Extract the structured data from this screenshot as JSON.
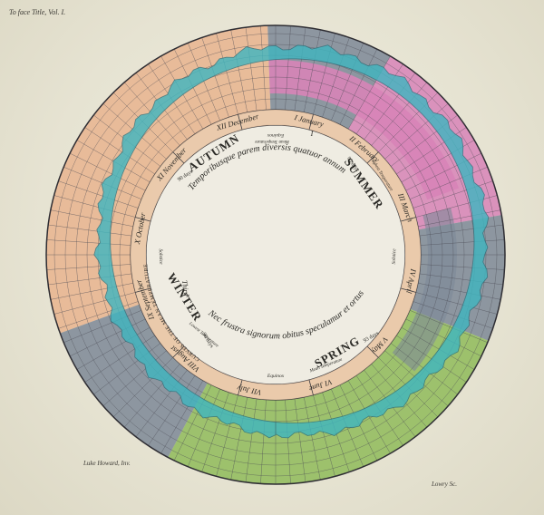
{
  "plate": {
    "volume_note": "To face Title, Vol. I.",
    "engraver_left": "Luke Howard, Inv.",
    "engraver_right": "Lowry Sc."
  },
  "seasons": [
    {
      "name": "AUTUMN",
      "days": "90 days",
      "color": "#e8b48e"
    },
    {
      "name": "WINTER",
      "days": "90 days",
      "color": "#7d8897"
    },
    {
      "name": "SPRING",
      "days": "93 days",
      "color": "#8fbb5a"
    },
    {
      "name": "SUMMER",
      "days": "93 days",
      "color": "#d784b7"
    }
  ],
  "months": [
    {
      "numeral": "I",
      "name": "January"
    },
    {
      "numeral": "II",
      "name": "February"
    },
    {
      "numeral": "III",
      "name": "March"
    },
    {
      "numeral": "IV",
      "name": "April"
    },
    {
      "numeral": "V",
      "name": "May"
    },
    {
      "numeral": "VI",
      "name": "June"
    },
    {
      "numeral": "VII",
      "name": "July"
    },
    {
      "numeral": "VIII",
      "name": "August"
    },
    {
      "numeral": "IX",
      "name": "September"
    },
    {
      "numeral": "X",
      "name": "October"
    },
    {
      "numeral": "XI",
      "name": "November"
    },
    {
      "numeral": "XII",
      "name": "December"
    }
  ],
  "inner_labels": {
    "equinox_top": "Equinox",
    "equinox_bottom": "Equinox",
    "mean_temperature": "Mean Temperature",
    "solstice_left": "Solstice",
    "solstice_right": "Solstice",
    "lowest_temperature": "Lowest Temperature",
    "highest_temperature": "Highest Temperature"
  },
  "central_motto": {
    "line_top": "Temporibusque parem diversis quatuor annum",
    "line_bottom": "Nec frustra signorum obitus speculamur et ortus",
    "line_right": "Nec frustra signorum"
  },
  "markers": {
    "winter_solstice": "Third",
    "summer_solstice": "I"
  },
  "colors": {
    "paper": "#e9e6d6",
    "temperature_band": "#3fb6c0",
    "grid": "#4b4b55",
    "winter": "#7d8897",
    "spring": "#8fbb5a",
    "summer": "#d784b7",
    "autumn": "#e8b48e",
    "ring_label_band": "#eac7a6"
  },
  "outer_ring_note": "CURVES OF THE MEAN TEMPERATURE"
}
